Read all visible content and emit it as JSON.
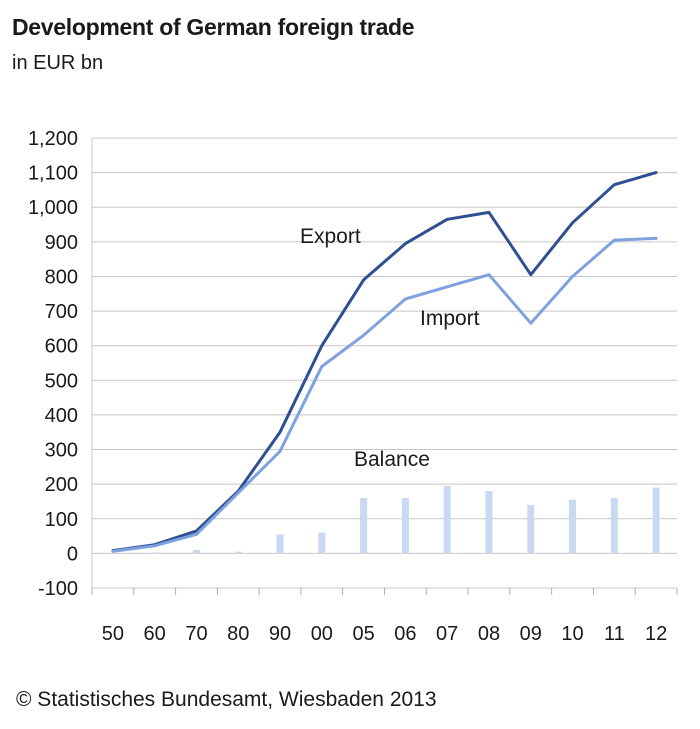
{
  "title": "Development of German foreign trade",
  "subtitle": "in EUR bn",
  "footer": "© Statistisches Bundesamt, Wiesbaden 2013",
  "chart_data": {
    "type": "line",
    "categories": [
      "50",
      "60",
      "70",
      "80",
      "90",
      "00",
      "05",
      "06",
      "07",
      "08",
      "09",
      "10",
      "11",
      "12"
    ],
    "series": [
      {
        "name": "Export",
        "kind": "line",
        "color": "#2e4f91",
        "values": [
          8,
          25,
          65,
          180,
          350,
          600,
          790,
          895,
          965,
          985,
          805,
          955,
          1065,
          1100
        ]
      },
      {
        "name": "Import",
        "kind": "line",
        "color": "#7ea1e0",
        "values": [
          6,
          22,
          55,
          175,
          295,
          540,
          630,
          735,
          770,
          805,
          665,
          800,
          905,
          910
        ]
      },
      {
        "name": "Balance",
        "kind": "bar",
        "color": "#c9d8f3",
        "values": [
          2,
          3,
          10,
          5,
          55,
          60,
          160,
          160,
          195,
          180,
          140,
          155,
          160,
          190
        ]
      }
    ],
    "yticks": [
      "1,200",
      "1,100",
      "1,000",
      "900",
      "800",
      "700",
      "600",
      "500",
      "400",
      "300",
      "200",
      "100",
      "0",
      "-100"
    ],
    "ylim": [
      -100,
      1200
    ],
    "grid": true,
    "annotations": [
      "Export",
      "Import",
      "Balance"
    ]
  }
}
